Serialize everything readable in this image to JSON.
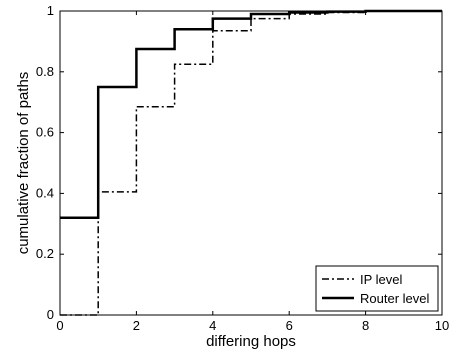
{
  "chart_data": {
    "type": "line",
    "xlabel": "differing hops",
    "ylabel": "cumulative fraction of paths",
    "xlim": [
      0,
      10
    ],
    "ylim": [
      0,
      1
    ],
    "xticks": [
      "0",
      "2",
      "4",
      "6",
      "8",
      "10"
    ],
    "yticks": [
      "0",
      "0.2",
      "0.4",
      "0.6",
      "0.8",
      "1"
    ],
    "grid": false,
    "legend_position": "bottom-right",
    "step": "post",
    "series": [
      {
        "name": "IP level",
        "style": "dash-dot",
        "color": "#000000",
        "x": [
          0,
          1,
          2,
          3,
          4,
          5,
          6,
          7,
          8,
          9,
          10
        ],
        "y": [
          0,
          0.405,
          0.685,
          0.825,
          0.935,
          0.975,
          0.99,
          0.995,
          1.0,
          1.0,
          1.0
        ]
      },
      {
        "name": "Router level",
        "style": "solid",
        "color": "#000000",
        "x": [
          0,
          1,
          2,
          3,
          4,
          5,
          6,
          7,
          8,
          9,
          10
        ],
        "y": [
          0.32,
          0.75,
          0.875,
          0.94,
          0.975,
          0.99,
          0.995,
          0.998,
          1.0,
          1.0,
          1.0
        ]
      }
    ]
  }
}
